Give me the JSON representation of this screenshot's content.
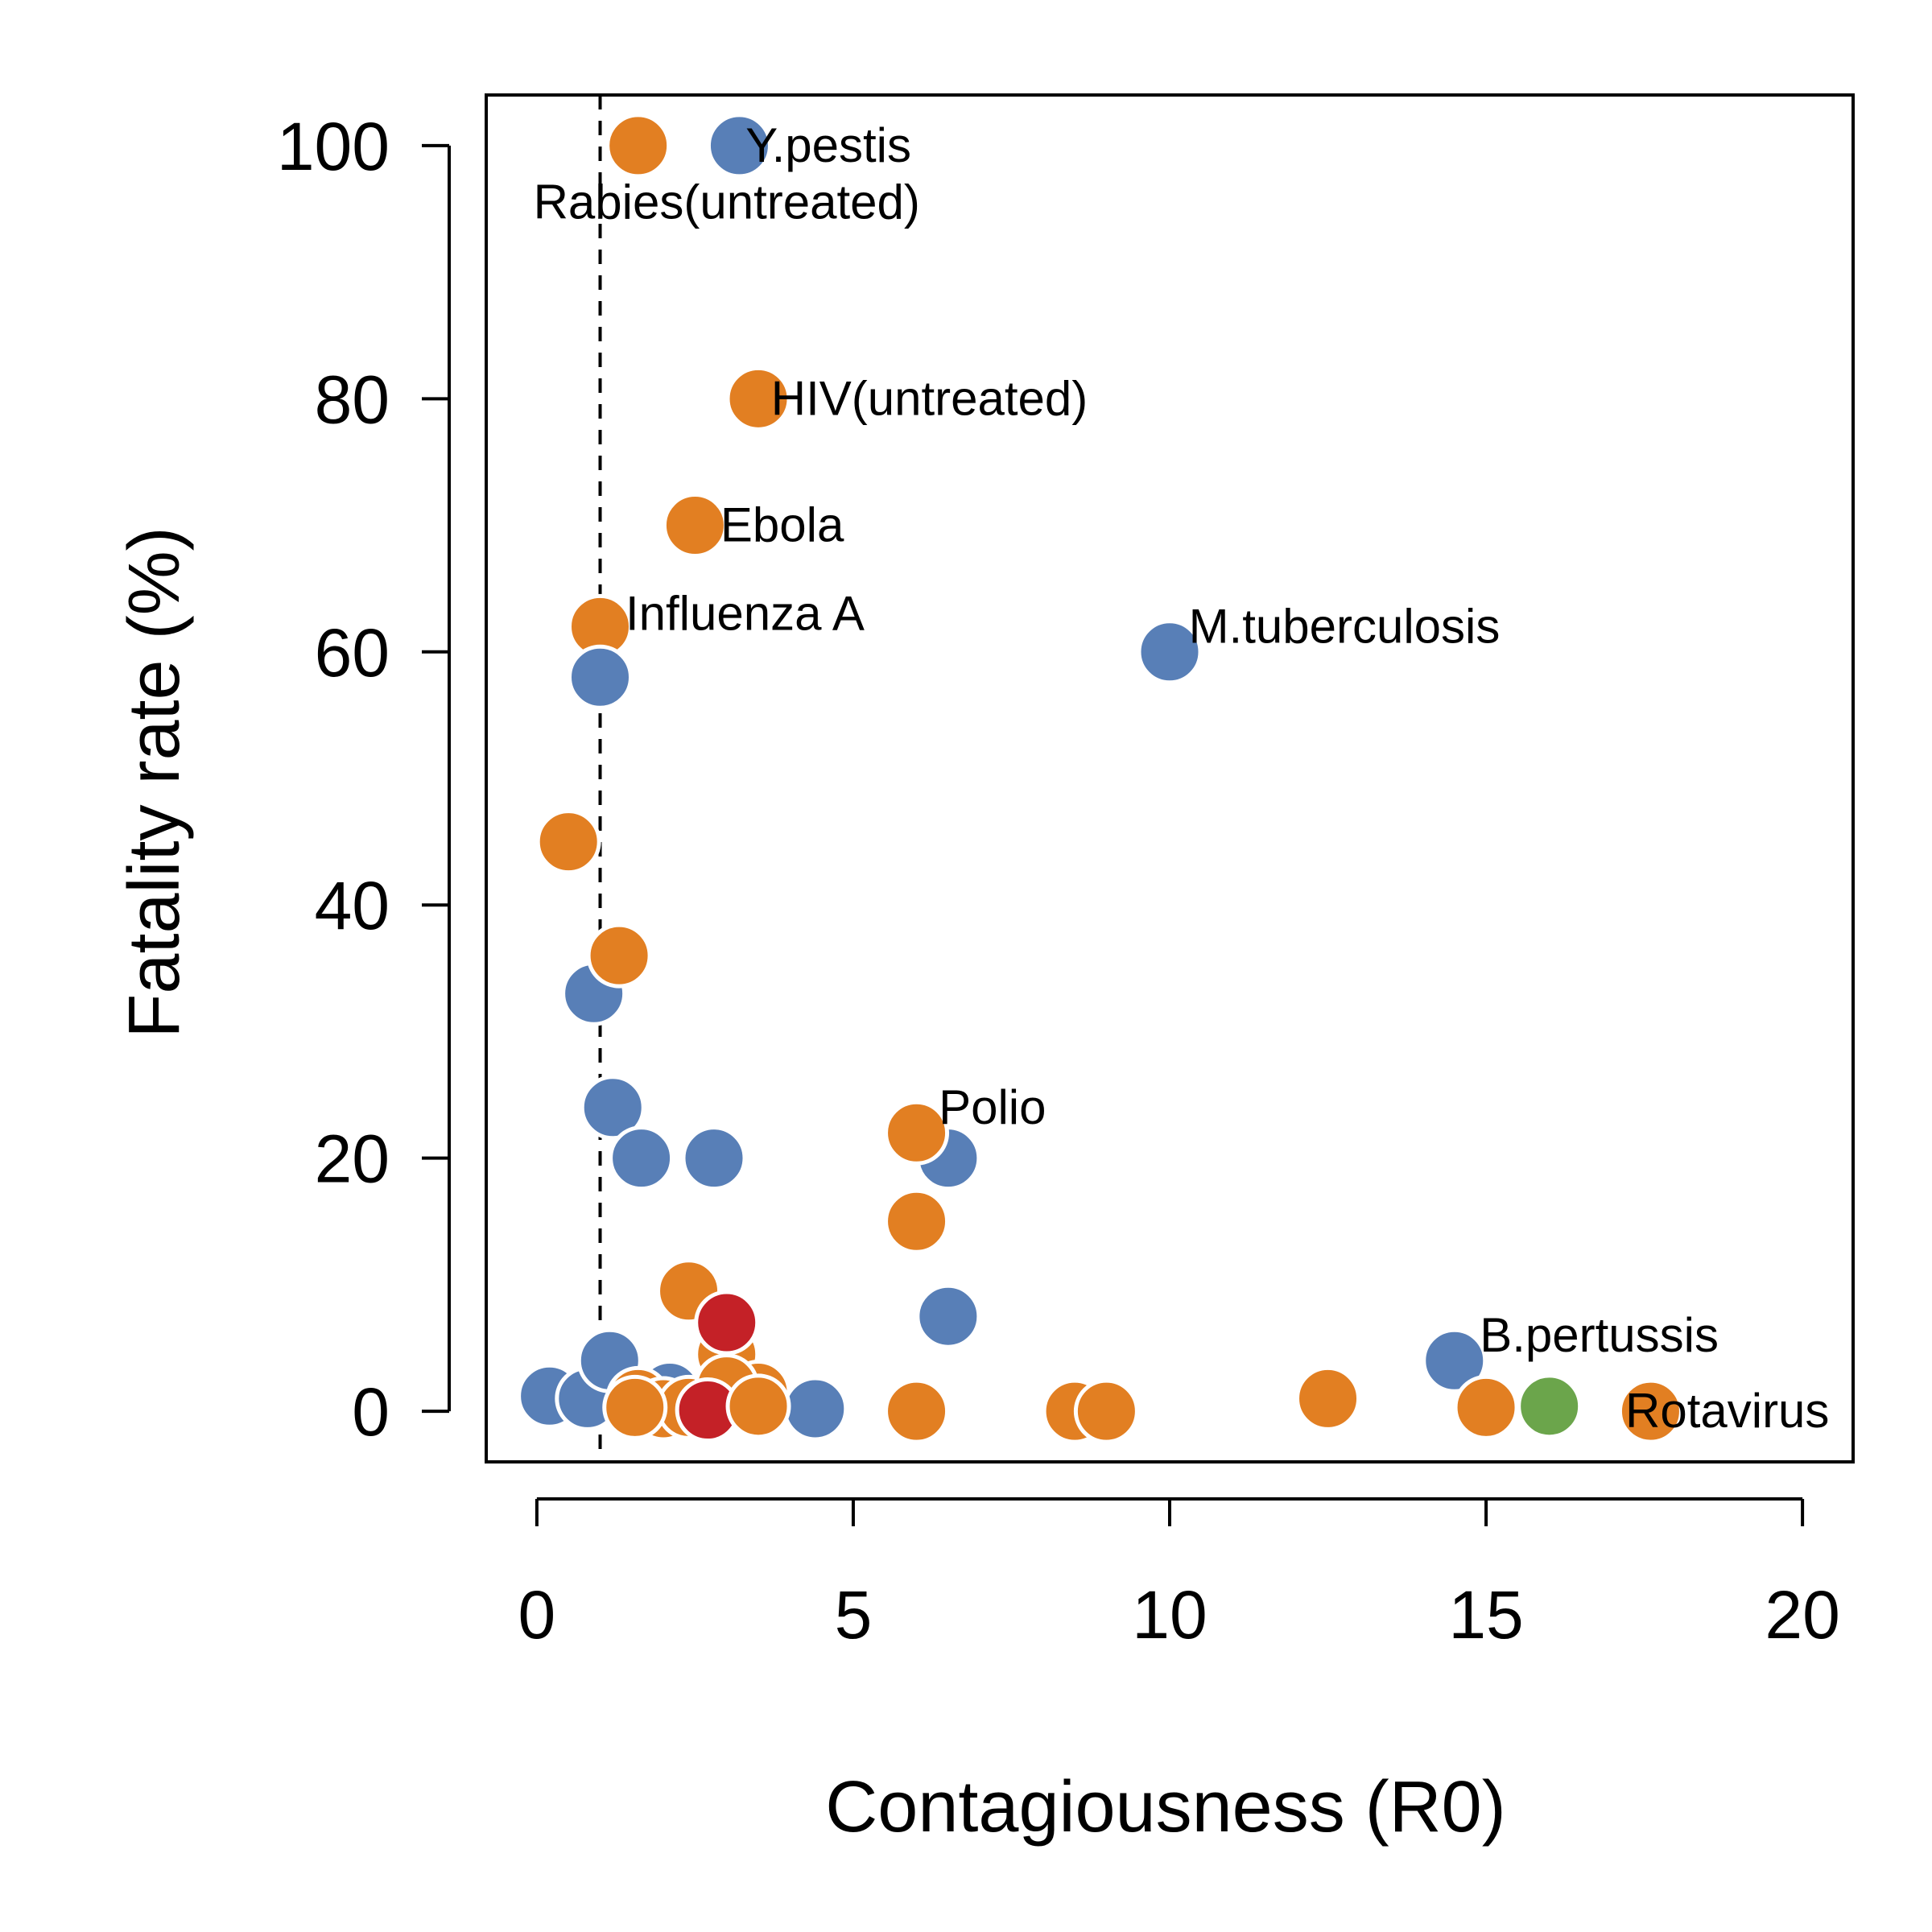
{
  "chart_data": {
    "type": "scatter",
    "title": "",
    "xlabel": "Contagiousness (R0)",
    "ylabel": "Fatality rate (%)",
    "xlim": [
      -0.8,
      20.8
    ],
    "ylim": [
      -4,
      104
    ],
    "xticks": [
      0,
      5,
      10,
      15,
      20
    ],
    "yticks": [
      0,
      20,
      40,
      60,
      80,
      100
    ],
    "reference_line": {
      "x": 1,
      "style": "dashed"
    },
    "grid": false,
    "legend": "none",
    "colors": {
      "orange": "#E27F22",
      "blue": "#587FB7",
      "red": "#C42127",
      "green": "#6BA54B"
    },
    "points": [
      {
        "x": 0.2,
        "y": 1.2,
        "color": "blue"
      },
      {
        "x": 0.8,
        "y": 1.0,
        "color": "blue"
      },
      {
        "x": 0.5,
        "y": 45,
        "color": "orange"
      },
      {
        "x": 0.9,
        "y": 33,
        "color": "blue"
      },
      {
        "x": 1.0,
        "y": 62,
        "color": "orange"
      },
      {
        "x": 1.0,
        "y": 58,
        "color": "blue"
      },
      {
        "x": 1.3,
        "y": 36,
        "color": "orange"
      },
      {
        "x": 1.2,
        "y": 24,
        "color": "blue"
      },
      {
        "x": 1.65,
        "y": 20,
        "color": "blue"
      },
      {
        "x": 1.15,
        "y": 4,
        "color": "blue"
      },
      {
        "x": 1.6,
        "y": 100,
        "color": "orange"
      },
      {
        "x": 3.2,
        "y": 100,
        "color": "blue"
      },
      {
        "x": 3.5,
        "y": 80,
        "color": "orange"
      },
      {
        "x": 2.5,
        "y": 70,
        "color": "orange"
      },
      {
        "x": 2.8,
        "y": 20,
        "color": "blue"
      },
      {
        "x": 2.4,
        "y": 9.5,
        "color": "orange"
      },
      {
        "x": 2.1,
        "y": 1.5,
        "color": "blue"
      },
      {
        "x": 1.6,
        "y": 1.0,
        "color": "orange"
      },
      {
        "x": 2.0,
        "y": 0.2,
        "color": "orange"
      },
      {
        "x": 2.4,
        "y": 0.3,
        "color": "orange"
      },
      {
        "x": 3.0,
        "y": 4.5,
        "color": "orange"
      },
      {
        "x": 3.5,
        "y": 1.5,
        "color": "orange"
      },
      {
        "x": 3.0,
        "y": 2.0,
        "color": "orange"
      },
      {
        "x": 4.4,
        "y": 0.2,
        "color": "blue"
      },
      {
        "x": 3.0,
        "y": 7.0,
        "color": "red"
      },
      {
        "x": 2.7,
        "y": 0.1,
        "color": "red"
      },
      {
        "x": 1.55,
        "y": 0.3,
        "color": "orange"
      },
      {
        "x": 3.5,
        "y": 0.4,
        "color": "orange"
      },
      {
        "x": 6.5,
        "y": 20,
        "color": "blue"
      },
      {
        "x": 6.0,
        "y": 22,
        "color": "orange"
      },
      {
        "x": 6.0,
        "y": 15,
        "color": "orange"
      },
      {
        "x": 6.5,
        "y": 7.5,
        "color": "blue"
      },
      {
        "x": 6.0,
        "y": 0.0,
        "color": "orange"
      },
      {
        "x": 8.5,
        "y": 0.0,
        "color": "orange"
      },
      {
        "x": 9.0,
        "y": 0.0,
        "color": "orange"
      },
      {
        "x": 10.0,
        "y": 60,
        "color": "blue"
      },
      {
        "x": 12.5,
        "y": 1.0,
        "color": "orange"
      },
      {
        "x": 14.5,
        "y": 4.0,
        "color": "blue"
      },
      {
        "x": 15.0,
        "y": 0.3,
        "color": "orange"
      },
      {
        "x": 16.0,
        "y": 0.4,
        "color": "green"
      },
      {
        "x": 17.6,
        "y": 0.0,
        "color": "orange"
      }
    ],
    "annotations": [
      {
        "text": "Y.pestis",
        "x": 3.3,
        "y": 100,
        "anchor": "start"
      },
      {
        "text": "Rabies(untreated)",
        "x": 3.0,
        "y": 95.5,
        "anchor": "middle"
      },
      {
        "text": "HIV(untreated)",
        "x": 3.7,
        "y": 80,
        "anchor": "start"
      },
      {
        "text": "Ebola",
        "x": 2.9,
        "y": 70,
        "anchor": "start"
      },
      {
        "text": "Influenza A",
        "x": 1.4,
        "y": 63,
        "anchor": "start"
      },
      {
        "text": "M.tuberculosis",
        "x": 10.3,
        "y": 62,
        "anchor": "start"
      },
      {
        "text": "Polio",
        "x": 6.35,
        "y": 24,
        "anchor": "start"
      },
      {
        "text": "B.pertussis",
        "x": 14.9,
        "y": 6,
        "anchor": "start"
      },
      {
        "text": "Rotavirus",
        "x": 17.2,
        "y": 0,
        "anchor": "start"
      }
    ]
  }
}
